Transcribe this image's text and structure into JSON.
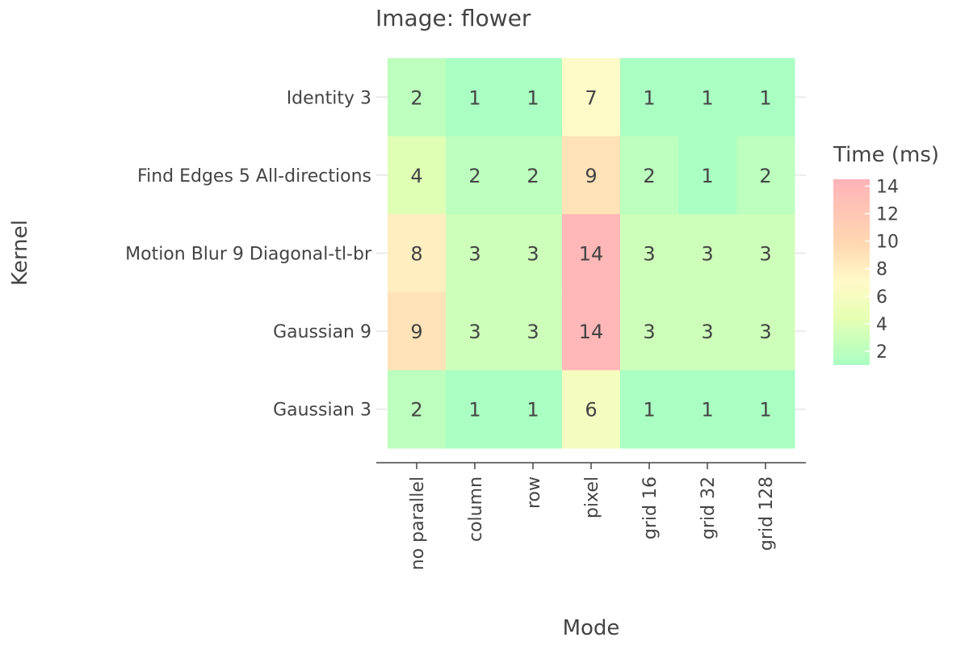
{
  "chart_data": {
    "type": "heatmap",
    "title": "Image: flower",
    "xlabel": "Mode",
    "ylabel": "Kernel",
    "x": [
      "no parallel",
      "column",
      "row",
      "pixel",
      "grid 16",
      "grid 32",
      "grid 128"
    ],
    "y": [
      "Identity 3",
      "Find Edges 5 All-directions",
      "Motion Blur 9 Diagonal-tl-br",
      "Gaussian 9",
      "Gaussian 3"
    ],
    "z": [
      [
        2,
        1,
        1,
        7,
        1,
        1,
        1
      ],
      [
        4,
        2,
        2,
        9,
        2,
        1,
        2
      ],
      [
        8,
        3,
        3,
        14,
        3,
        3,
        3
      ],
      [
        9,
        3,
        3,
        14,
        3,
        3,
        3
      ],
      [
        2,
        1,
        1,
        6,
        1,
        1,
        1
      ]
    ],
    "colorbar": {
      "title": "Time (ms)",
      "ticks": [
        2,
        4,
        6,
        8,
        10,
        12,
        14
      ],
      "zmin": 1,
      "zmax": 14.5
    },
    "colorscale": [
      [
        0.0,
        "#aaffc3"
      ],
      [
        0.25,
        "#e6ffb3"
      ],
      [
        0.45,
        "#fffac8"
      ],
      [
        0.65,
        "#ffd8b1"
      ],
      [
        1.0,
        "#ffb3b8"
      ]
    ]
  }
}
